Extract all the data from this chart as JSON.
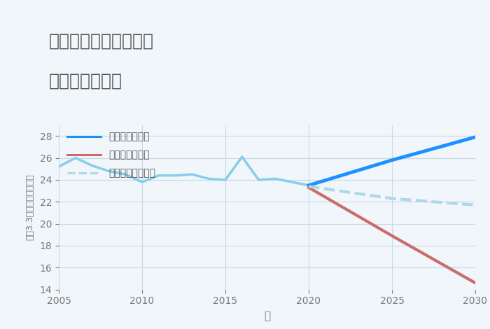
{
  "title_line1": "千葉県市原市姉崎西の",
  "title_line2": "土地の価格推移",
  "xlabel": "年",
  "ylabel": "坪（3.3㎡）単価（万円）",
  "background_color": "#f0f6fa",
  "plot_bg_color": "#f0f6fa",
  "ylim": [
    14,
    29
  ],
  "xlim": [
    2005,
    2030
  ],
  "yticks": [
    14,
    16,
    18,
    20,
    22,
    24,
    26,
    28
  ],
  "xticks": [
    2005,
    2010,
    2015,
    2020,
    2025,
    2030
  ],
  "historical": {
    "years": [
      2005,
      2006,
      2007,
      2008,
      2009,
      2010,
      2011,
      2012,
      2013,
      2014,
      2015,
      2016,
      2017,
      2018,
      2019,
      2020
    ],
    "values": [
      25.2,
      26.0,
      25.3,
      24.8,
      24.5,
      23.8,
      24.4,
      24.4,
      24.5,
      24.1,
      24.0,
      26.1,
      24.0,
      24.1,
      23.8,
      23.5
    ],
    "color": "#87CEEB",
    "linewidth": 2.5
  },
  "good": {
    "years": [
      2020,
      2025,
      2030
    ],
    "values": [
      23.5,
      25.8,
      27.9
    ],
    "color": "#1E90FF",
    "linewidth": 3.5,
    "label": "グッドシナリオ",
    "linestyle": "-"
  },
  "bad": {
    "years": [
      2020,
      2025,
      2030
    ],
    "values": [
      23.3,
      18.9,
      14.6
    ],
    "color": "#CD6B6B",
    "linewidth": 3.0,
    "label": "バッドシナリオ",
    "linestyle": "-"
  },
  "normal": {
    "years": [
      2020,
      2025,
      2030
    ],
    "values": [
      23.4,
      22.3,
      21.7
    ],
    "color": "#ADD8E6",
    "linewidth": 3.0,
    "label": "ノーマルシナリオ",
    "linestyle": "--"
  },
  "grid_color": "#c8d8e8",
  "title_color": "#555555",
  "tick_color": "#777777",
  "title_fontsize": 18,
  "legend_fontsize": 10
}
